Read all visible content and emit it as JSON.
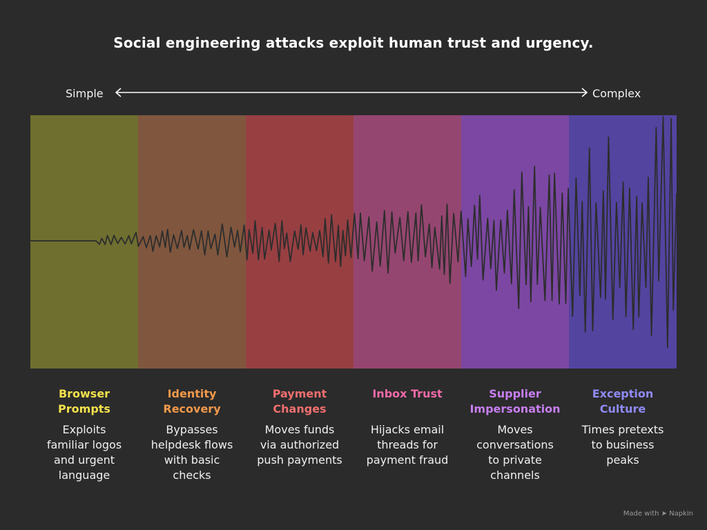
{
  "title": "Social engineering attacks exploit human trust and urgency.",
  "axis": {
    "left_label": "Simple",
    "right_label": "Complex"
  },
  "categories": [
    {
      "title": "Browser Prompts",
      "title_color": "#f2e14c",
      "band_color": "#6f6f30",
      "description": "Exploits familiar logos and urgent language"
    },
    {
      "title": "Identity Recovery",
      "title_color": "#f2994a",
      "band_color": "#80573e",
      "description": "Bypasses helpdesk flows with basic checks"
    },
    {
      "title": "Payment Changes",
      "title_color": "#f06f6f",
      "band_color": "#983f42",
      "description": "Moves funds via authorized push payments"
    },
    {
      "title": "Inbox Trust",
      "title_color": "#f06aa8",
      "band_color": "#954670",
      "description": "Hijacks email threads for payment fraud"
    },
    {
      "title": "Supplier Impersonation",
      "title_color": "#c77ef0",
      "band_color": "#7c47a3",
      "description": "Moves conversations to private channels"
    },
    {
      "title": "Exception Culture",
      "title_color": "#8f8af5",
      "band_color": "#5344a0",
      "description": "Times pretexts to business peaks"
    }
  ],
  "footer": "Made with ➤ Napkin",
  "colors": {
    "background": "#2b2b2b",
    "wave": "#2d2d2d",
    "arrow": "#ffffff"
  }
}
